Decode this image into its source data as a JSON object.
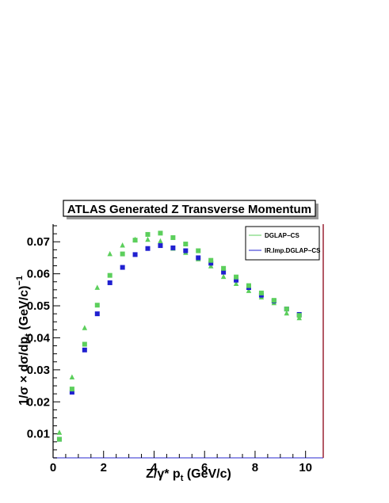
{
  "chart_data": {
    "type": "scatter",
    "title": "ATLAS Generated Z Transverse Momentum",
    "xlabel": "Z/γ* p",
    "xlabel_sub": "t",
    "xlabel_unit": " (GeV/c)",
    "ylabel": "1/σ × dσ/dp",
    "ylabel_sub": "t",
    "ylabel_unit": "  (GeV/c)",
    "ylabel_sup": "−1",
    "xlim": [
      0,
      10.7
    ],
    "ylim": [
      0.0025,
      0.0755
    ],
    "x_ticks": [
      "0",
      "2",
      "4",
      "6",
      "8",
      "10"
    ],
    "x_tick_values": [
      0,
      2,
      4,
      6,
      8,
      10
    ],
    "y_ticks": [
      "0.01",
      "0.02",
      "0.03",
      "0.04",
      "0.05",
      "0.06",
      "0.07"
    ],
    "y_tick_values": [
      0.01,
      0.02,
      0.03,
      0.04,
      0.05,
      0.06,
      0.07
    ],
    "grid": false,
    "legend_position": "top-right",
    "legend": [
      {
        "label": "DGLAP−CS",
        "color": "#5ccf5c"
      },
      {
        "label": "IR.Imp.DGLAP−CS",
        "color": "#2020d0"
      }
    ],
    "series": [
      {
        "marker": "triangle",
        "color": "#5ccf5c",
        "x": [
          0.25,
          0.75,
          1.25,
          1.75,
          2.25,
          2.75,
          3.25,
          3.75,
          4.25,
          4.75,
          5.25,
          5.75,
          6.25,
          6.75,
          7.25,
          7.75,
          8.25,
          8.75,
          9.25,
          9.75
        ],
        "y": [
          0.0105,
          0.0278,
          0.0432,
          0.0558,
          0.0663,
          0.069,
          0.0708,
          0.0708,
          0.0703,
          0.068,
          0.0667,
          0.0647,
          0.0625,
          0.0592,
          0.057,
          0.0548,
          0.0528,
          0.051,
          0.0478,
          0.0463
        ]
      },
      {
        "marker": "square",
        "color": "#2020d0",
        "x": [
          0.25,
          0.75,
          1.25,
          1.75,
          2.25,
          2.75,
          3.25,
          3.75,
          4.25,
          4.75,
          5.25,
          5.75,
          6.25,
          6.75,
          7.25,
          7.75,
          8.25,
          8.75,
          9.25,
          9.75
        ],
        "y": [
          0.0083,
          0.023,
          0.0362,
          0.0475,
          0.0572,
          0.062,
          0.066,
          0.0679,
          0.0688,
          0.0681,
          0.0672,
          0.065,
          0.0633,
          0.0605,
          0.058,
          0.0557,
          0.0533,
          0.0515,
          0.049,
          0.0473
        ]
      },
      {
        "marker": "square",
        "color": "#5ccf5c",
        "x": [
          0.25,
          0.75,
          1.25,
          1.75,
          2.25,
          2.75,
          3.25,
          3.75,
          4.25,
          4.75,
          5.25,
          5.75,
          6.25,
          6.75,
          7.25,
          7.75,
          8.25,
          8.75,
          9.25,
          9.75
        ],
        "y": [
          0.0083,
          0.024,
          0.038,
          0.0502,
          0.0595,
          0.0662,
          0.0705,
          0.0723,
          0.0727,
          0.0713,
          0.0693,
          0.0672,
          0.0642,
          0.0617,
          0.059,
          0.0563,
          0.054,
          0.0517,
          0.049,
          0.047
        ]
      }
    ]
  }
}
